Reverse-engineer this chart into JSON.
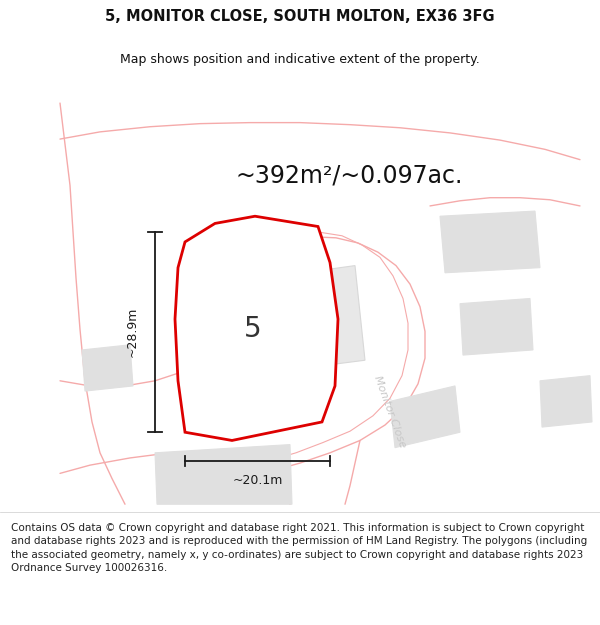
{
  "title_line1": "5, MONITOR CLOSE, SOUTH MOLTON, EX36 3FG",
  "title_line2": "Map shows position and indicative extent of the property.",
  "area_text": "~392m²/~0.097ac.",
  "label_number": "5",
  "dim_height": "~28.9m",
  "dim_width": "~20.1m",
  "road_label": "Monitor Close",
  "footer_text": "Contains OS data © Crown copyright and database right 2021. This information is subject to Crown copyright and database rights 2023 and is reproduced with the permission of HM Land Registry. The polygons (including the associated geometry, namely x, y co-ordinates) are subject to Crown copyright and database rights 2023 Ordnance Survey 100026316.",
  "bg_color": "#ffffff",
  "road_line_color": "#f5aaaa",
  "plot_fill": "#ffffff",
  "plot_stroke": "#dd0000",
  "building_fill": "#e0e0e0",
  "building_stroke": "#e0e0e0",
  "road_label_color": "#c8c8c8",
  "dim_line_color": "#1a1a1a",
  "title_color": "#111111",
  "area_color": "#111111",
  "footer_color": "#222222",
  "title_fontsize": 10.5,
  "subtitle_fontsize": 9,
  "area_fontsize": 17,
  "label_fontsize": 20,
  "dim_fontsize": 9,
  "footer_fontsize": 7.5,
  "road_label_fontsize": 8
}
